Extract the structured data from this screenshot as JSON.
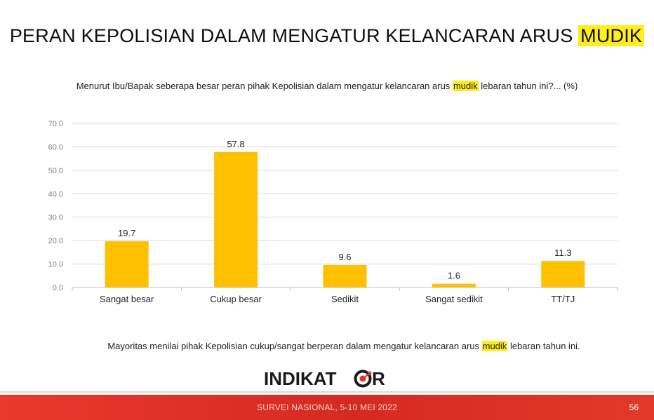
{
  "header": {
    "title_main": "PERAN KEPOLISIAN DALAM MENGATUR KELANCARAN ARUS",
    "title_highlight": "MUDIK"
  },
  "question": {
    "before": "Menurut Ibu/Bapak seberapa besar peran pihak Kepolisian dalam mengatur kelancaran arus",
    "highlight": "mudik",
    "after": "lebaran tahun ini?... (%)"
  },
  "chart_data": {
    "type": "bar",
    "categories": [
      "Sangat besar",
      "Cukup besar",
      "Sedikit",
      "Sangat sedikit",
      "TT/TJ"
    ],
    "values": [
      19.7,
      57.8,
      9.6,
      1.6,
      11.3
    ],
    "value_labels": [
      "19.7",
      "57.8",
      "9.6",
      "1.6",
      "11.3"
    ],
    "yticks": [
      "0.0",
      "10.0",
      "20.0",
      "30.0",
      "40.0",
      "50.0",
      "60.0",
      "70.0"
    ],
    "ylim": [
      0,
      70
    ],
    "grid": true,
    "bar_color": "#ffc000"
  },
  "conclusion": {
    "before": "Mayoritas menilai pihak Kepolisian cukup/sangat berperan dalam mengatur kelancaran arus",
    "highlight": "mudik",
    "after": "lebaran tahun ini."
  },
  "logo": {
    "text_left": "INDIKAT",
    "text_right": "R"
  },
  "footer": {
    "survey": "SURVEI NASIONAL, 5-10 MEI 2022",
    "page": "56"
  },
  "colors": {
    "accent_red": "#e2352a",
    "highlight_yellow": "#ffee1a"
  }
}
